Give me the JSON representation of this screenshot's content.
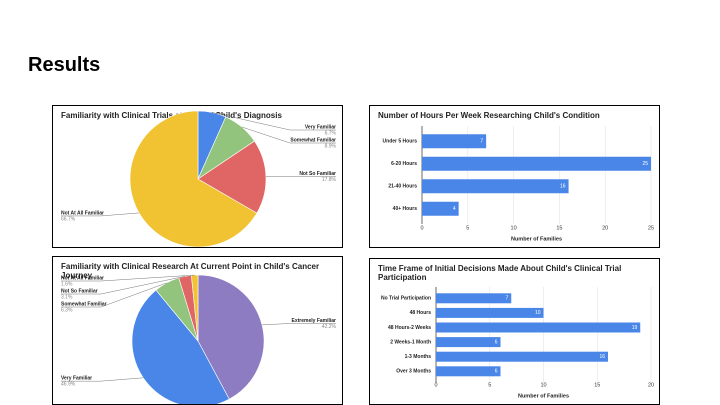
{
  "slide_title": "Results",
  "chart_data": [
    {
      "type": "pie",
      "title": "Familiarity with Clinical Trials at Time of Child's Diagnosis",
      "categories": [
        "Very Familiar",
        "Somewhat Familiar",
        "Not So Familiar",
        "Not At All Familiar"
      ],
      "values": [
        6.7,
        8.9,
        17.8,
        66.7
      ],
      "value_labels": [
        "6.7%",
        "8.9%",
        "17.8%",
        "66.7%"
      ],
      "colors": [
        "#4a86e8",
        "#93c47d",
        "#e06666",
        "#f1c232"
      ]
    },
    {
      "type": "bar",
      "title": "Number of Hours Per Week Researching Child's Condition",
      "categories": [
        "Under 5 Hours",
        "6-20 Hours",
        "21-40 Hours",
        "40+ Hours"
      ],
      "values": [
        7,
        25,
        16,
        4
      ],
      "color": "#4a86e8",
      "xlim": [
        0,
        25
      ],
      "xticks": [
        0,
        5,
        10,
        15,
        20,
        25
      ],
      "xlabel": "Number of Families",
      "grid": true
    },
    {
      "type": "pie",
      "title": "Familiarity with Clinical Research At Current Point in Child's Cancer Journey",
      "categories": [
        "Extremely Familiar",
        "Very Familiar",
        "Somewhat Familiar",
        "Not So Familiar",
        "Not At All Familiar"
      ],
      "values": [
        42.2,
        46.9,
        6.3,
        3.1,
        1.6
      ],
      "value_labels": [
        "42.2%",
        "46.9%",
        "6.3%",
        "3.1%",
        "1.6%"
      ],
      "colors": [
        "#8e7cc3",
        "#4a86e8",
        "#93c47d",
        "#e06666",
        "#f1c232"
      ]
    },
    {
      "type": "bar",
      "title": "Time Frame of Initial Decisions Made About Child's Clinical Trial Participation",
      "categories": [
        "No Trial Participation",
        "48 Hours",
        "48 Hours-2 Weeks",
        "2 Weeks-1 Month",
        "1-3 Months",
        "Over 3 Months"
      ],
      "values": [
        7,
        10,
        19,
        6,
        16,
        6
      ],
      "color": "#4a86e8",
      "xlim": [
        0,
        20
      ],
      "xticks": [
        0,
        5,
        10,
        15,
        20
      ],
      "xlabel": "Number of Families",
      "grid": true
    }
  ]
}
